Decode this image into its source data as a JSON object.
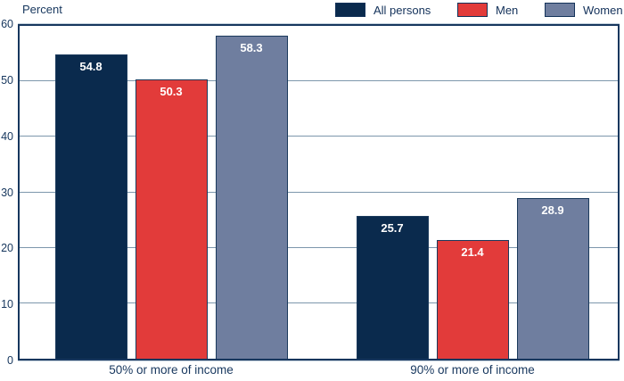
{
  "chart_data": {
    "type": "bar",
    "title": "",
    "ylabel": "Percent",
    "xlabel": "",
    "categories": [
      "50% or more of income",
      "90% or more of income"
    ],
    "series": [
      {
        "name": "All persons",
        "color": "#0a2a4d",
        "values": [
          54.8,
          25.7
        ]
      },
      {
        "name": "Men",
        "color": "#e23b3a",
        "values": [
          50.3,
          21.4
        ]
      },
      {
        "name": "Women",
        "color": "#6f7e9f",
        "values": [
          58.3,
          28.9
        ]
      }
    ],
    "ylim": [
      0,
      60
    ],
    "ytick_step": 10,
    "grid": true,
    "legend_position": "top-right",
    "value_labels": true,
    "value_label_decimals": 1
  },
  "colors": {
    "axis": "#17375e",
    "grid": "#7d97ac",
    "text": "#17375e",
    "value_label_text": "#ffffff"
  }
}
